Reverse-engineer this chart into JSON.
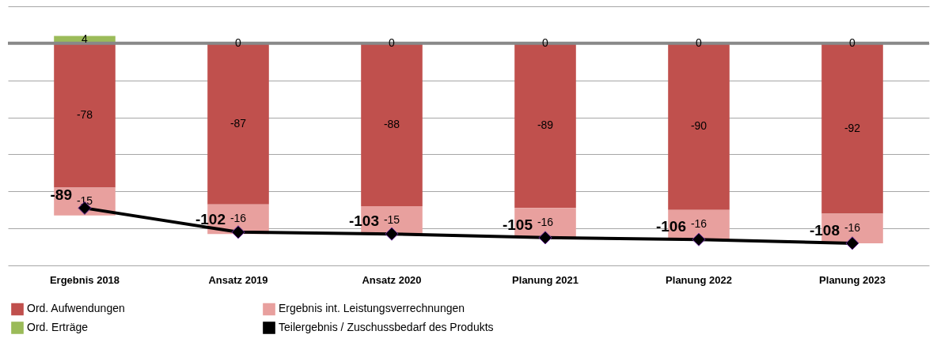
{
  "chart_data": {
    "type": "bar",
    "stacked": true,
    "categories": [
      "Ergebnis 2018",
      "Ansatz 2019",
      "Ansatz 2020",
      "Planung 2021",
      "Planung 2022",
      "Planung 2023"
    ],
    "series": [
      {
        "name": "Ord. Aufwendungen",
        "color": "#c0504d",
        "values": [
          -78,
          -87,
          -88,
          -89,
          -90,
          -92
        ]
      },
      {
        "name": "Ergebnis int. Leistungsverrechnungen",
        "color": "#e8a09e",
        "values": [
          -15,
          -16,
          -15,
          -16,
          -16,
          -16
        ]
      },
      {
        "name": "Ord. Erträge",
        "color": "#9bbb59",
        "values": [
          4,
          0,
          0,
          0,
          0,
          0
        ]
      },
      {
        "name": "Teilergebnis / Zuschussbedarf des Produkts",
        "type": "line",
        "color": "#000000",
        "marker": "diamond",
        "line_style": "solid",
        "values": [
          -89,
          -102,
          -103,
          -105,
          -106,
          -108
        ]
      }
    ],
    "ylim": [
      -120,
      20
    ],
    "yticks": [
      {
        "value": -120,
        "label": null
      },
      {
        "value": -100,
        "label": null
      },
      {
        "value": -80,
        "label": null
      },
      {
        "value": -60,
        "label": null
      },
      {
        "value": -40,
        "label": null
      },
      {
        "value": -20,
        "label": null
      },
      {
        "value": 0,
        "label": null
      },
      {
        "value": 20,
        "label": null
      }
    ],
    "tick_labels": "x",
    "grid": "y",
    "ref_lines": [
      {
        "axis": "y",
        "value": 0,
        "color": "#888888"
      }
    ],
    "data_labels": true,
    "legend": "bottom"
  }
}
